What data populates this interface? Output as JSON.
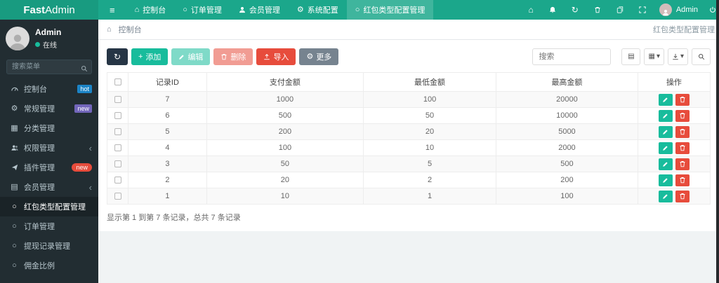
{
  "navbar": {
    "brand_bold": "Fast",
    "brand_rest": "Admin",
    "tabs": [
      {
        "label": "控制台",
        "icon": "home",
        "active": false
      },
      {
        "label": "订单管理",
        "icon": "circle",
        "active": false
      },
      {
        "label": "会员管理",
        "icon": "user",
        "active": false
      },
      {
        "label": "系统配置",
        "icon": "gear",
        "active": false
      },
      {
        "label": "红包类型配置管理",
        "icon": "circle",
        "active": true
      }
    ],
    "user": "Admin"
  },
  "sidebar": {
    "user": {
      "name": "Admin",
      "status": "在线"
    },
    "search_placeholder": "搜索菜单",
    "items": [
      {
        "label": "控制台",
        "icon": "gauge",
        "badge": "hot",
        "badge_color": "#1c84c6",
        "badge_pill": false,
        "active": false,
        "chevron": false
      },
      {
        "label": "常规管理",
        "icon": "gear",
        "badge": "new",
        "badge_color": "#7266ba",
        "badge_pill": false,
        "active": false,
        "chevron": false
      },
      {
        "label": "分类管理",
        "icon": "grid",
        "active": false,
        "chevron": false
      },
      {
        "label": "权限管理",
        "icon": "users",
        "active": false,
        "chevron": true
      },
      {
        "label": "插件管理",
        "icon": "plane",
        "badge": "new",
        "badge_color": "#e74c3c",
        "badge_pill": true,
        "active": false,
        "chevron": false
      },
      {
        "label": "会员管理",
        "icon": "list",
        "active": false,
        "chevron": true
      },
      {
        "label": "红包类型配置管理",
        "icon": "circle",
        "active": true,
        "chevron": false
      },
      {
        "label": "订单管理",
        "icon": "circle",
        "active": false,
        "chevron": false
      },
      {
        "label": "提现记录管理",
        "icon": "circle",
        "active": false,
        "chevron": false
      },
      {
        "label": "佣金比例",
        "icon": "circle",
        "active": false,
        "chevron": false
      }
    ]
  },
  "breadcrumb": {
    "home": "控制台",
    "right_title": "红包类型配置管理"
  },
  "toolbar": {
    "add_label": "添加",
    "edit_label": "编辑",
    "delete_label": "删除",
    "import_label": "导入",
    "more_label": "更多",
    "search_placeholder": "搜索"
  },
  "table": {
    "columns": [
      "记录ID",
      "支付金额",
      "最低金额",
      "最高金额",
      "操作"
    ],
    "rows": [
      {
        "id": 7,
        "pay": 1000,
        "min": 100,
        "max": 20000
      },
      {
        "id": 6,
        "pay": 500,
        "min": 50,
        "max": 10000
      },
      {
        "id": 5,
        "pay": 200,
        "min": 20,
        "max": 5000
      },
      {
        "id": 4,
        "pay": 100,
        "min": 10,
        "max": 2000
      },
      {
        "id": 3,
        "pay": 50,
        "min": 5,
        "max": 500
      },
      {
        "id": 2,
        "pay": 20,
        "min": 2,
        "max": 200
      },
      {
        "id": 1,
        "pay": 10,
        "min": 1,
        "max": 100
      }
    ],
    "summary": "显示第 1 到第 7 条记录，总共 7 条记录"
  },
  "colors": {
    "navbar_green": "#1ba78b",
    "primary_green": "#18bc9c",
    "danger_red": "#e74c3c",
    "dark_button": "#263545",
    "gray_button": "#76838f",
    "sidebar_dark": "#222d32",
    "badge_hot_blue": "#1c84c6",
    "badge_new_purple": "#7266ba",
    "badge_new_red": "#e74c3c"
  }
}
